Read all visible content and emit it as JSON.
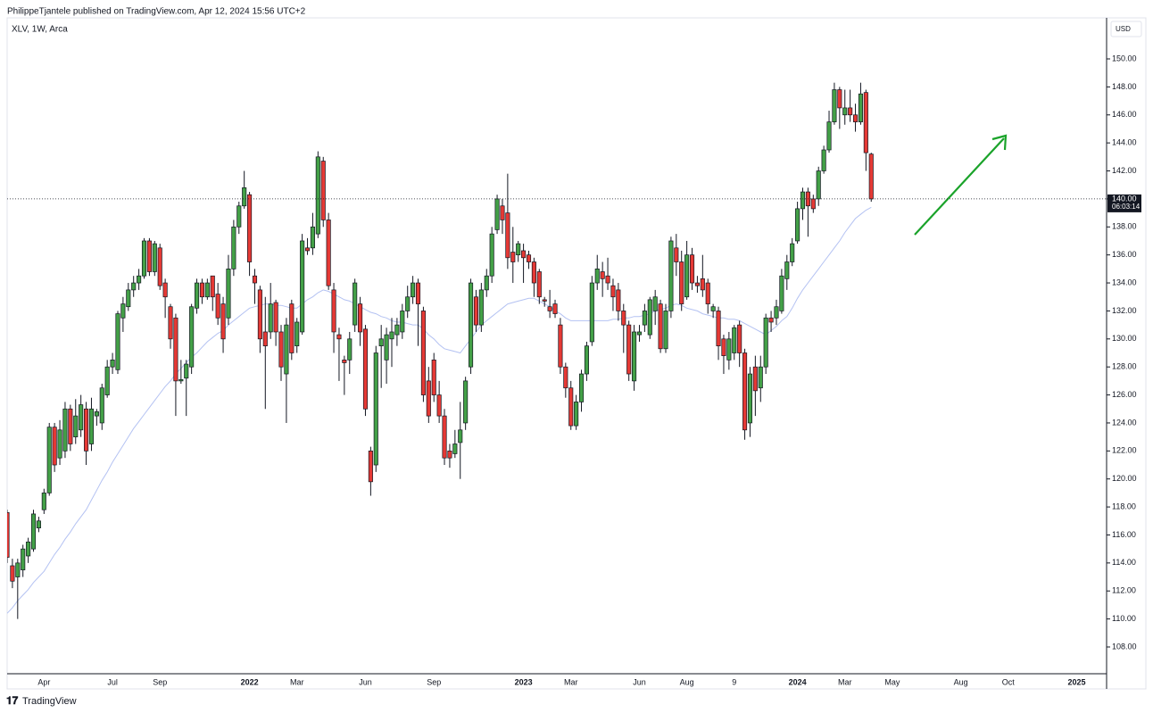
{
  "header": {
    "attribution": "PhilippeTjantele published on TradingView.com, Apr 12, 2024 15:56 UTC+2",
    "brand": "TradingView"
  },
  "chart_data": {
    "type": "candlestick",
    "title": "XLV, 1W, Arca",
    "currency": "USD",
    "up_color": "#43a047",
    "down_color": "#e53935",
    "last_price": {
      "value": 140,
      "label": "140.00"
    },
    "countdown": "06:03:14",
    "ylim": [
      107,
      152
    ],
    "yticks": [
      {
        "value": 108,
        "label": "108.00"
      },
      {
        "value": 110,
        "label": "110.00"
      },
      {
        "value": 112,
        "label": "112.00"
      },
      {
        "value": 114,
        "label": "114.00"
      },
      {
        "value": 116,
        "label": "116.00"
      },
      {
        "value": 118,
        "label": "118.00"
      },
      {
        "value": 120,
        "label": "120.00"
      },
      {
        "value": 122,
        "label": "122.00"
      },
      {
        "value": 124,
        "label": "124.00"
      },
      {
        "value": 126,
        "label": "126.00"
      },
      {
        "value": 128,
        "label": "128.00"
      },
      {
        "value": 130,
        "label": "130.00"
      },
      {
        "value": 132,
        "label": "132.00"
      },
      {
        "value": 134,
        "label": "134.00"
      },
      {
        "value": 136,
        "label": "136.00"
      },
      {
        "value": 138,
        "label": "138.00"
      },
      {
        "value": 140,
        "label": "140.00"
      },
      {
        "value": 142,
        "label": "142.00"
      },
      {
        "value": 144,
        "label": "144.00"
      },
      {
        "value": 146,
        "label": "146.00"
      },
      {
        "value": 148,
        "label": "148.00"
      },
      {
        "value": 150,
        "label": "150.00"
      }
    ],
    "categories": [
      null,
      null,
      null,
      null,
      null,
      null,
      null,
      "Apr",
      null,
      null,
      null,
      null,
      null,
      null,
      null,
      null,
      null,
      null,
      null,
      null,
      "Jul",
      null,
      null,
      null,
      null,
      null,
      null,
      null,
      null,
      "Sep",
      null,
      null,
      null,
      null,
      null,
      null,
      null,
      null,
      null,
      null,
      null,
      null,
      null,
      null,
      null,
      null,
      "2022",
      null,
      null,
      null,
      null,
      null,
      null,
      null,
      null,
      "Mar",
      null,
      null,
      null,
      null,
      null,
      null,
      null,
      null,
      null,
      null,
      null,
      null,
      "Jun",
      null,
      null,
      null,
      null,
      null,
      null,
      null,
      null,
      null,
      null,
      null,
      null,
      "Sep",
      null,
      null,
      null,
      null,
      null,
      null,
      null,
      null,
      null,
      null,
      null,
      null,
      null,
      null,
      null,
      null,
      "2023",
      null,
      null,
      null,
      null,
      null,
      null,
      null,
      null,
      "Mar",
      null,
      null,
      null,
      null,
      null,
      null,
      null,
      null,
      null,
      null,
      null,
      null,
      "Jun",
      null,
      null,
      null,
      null,
      null,
      null,
      null,
      null,
      "Aug",
      null,
      null,
      null,
      null,
      null,
      null,
      null,
      null,
      "9",
      null,
      null,
      null,
      null,
      null,
      null,
      null,
      null,
      null,
      null,
      null,
      "2024",
      null,
      null,
      null,
      null,
      null,
      null,
      null,
      null,
      "Mar",
      null,
      null,
      null,
      null,
      null,
      null,
      null,
      null,
      "May",
      null,
      null,
      null,
      null,
      null,
      null,
      null,
      null,
      null,
      null,
      null,
      null,
      "Aug",
      null,
      null,
      null,
      null,
      null,
      null,
      null,
      null,
      "Oct",
      null,
      null,
      null,
      null,
      null,
      null,
      null,
      null,
      null,
      null,
      null,
      null,
      "2025",
      null,
      null,
      null,
      null,
      null
    ],
    "open": [
      117.6,
      113.8,
      113.0,
      113.5,
      114.5,
      115.0,
      116.5,
      117.8,
      119.0,
      123.7,
      121.5,
      122.0,
      125.0,
      123.0,
      123.5,
      125.0,
      122.5,
      124.5,
      124.0,
      126.0,
      128.0,
      127.8,
      131.5,
      132.3,
      133.5,
      134.0,
      134.5,
      137.0,
      134.8,
      136.5,
      134.0,
      132.3,
      131.5,
      127.0,
      127.2,
      128.0,
      132.2,
      134.0,
      133.0,
      134.5,
      133.2,
      132.5,
      131.5,
      135.0,
      138.0,
      139.5,
      140.3,
      134.5,
      133.5,
      130.5,
      130.5,
      132.6,
      130.5,
      127.5,
      132.5,
      129.5,
      130.5,
      136.5,
      136.5,
      137.5,
      142.7,
      138.5,
      133.5,
      130.3,
      128.5,
      128.5,
      131.0,
      132.5,
      130.7,
      122.0,
      121.0,
      129.5,
      128.5,
      130.0,
      130.3,
      130.5,
      132.0,
      133.0,
      134.0,
      132.0,
      127.0,
      128.5,
      126.0,
      124.5,
      122.0,
      121.8,
      122.6,
      124.0,
      128.0,
      133.0,
      131.0,
      133.5,
      134.5,
      137.8,
      139.5,
      139.0,
      136.2,
      136.0,
      136.3,
      136.0,
      135.5,
      134.8,
      132.8,
      132.3,
      132.5,
      131.0,
      128.0,
      126.5,
      123.8,
      125.5,
      127.5,
      129.8,
      134.0,
      134.8,
      134.5,
      133.8,
      133.5,
      132.0,
      131.0,
      127.0,
      130.3,
      131.0,
      130.3,
      132.0,
      132.5,
      129.3,
      132.0,
      136.5,
      135.5,
      133.0,
      136.0,
      134.0,
      134.3,
      134.0,
      132.0,
      132.0,
      130.0,
      128.5,
      129.0,
      131.0,
      129.0,
      124.0,
      128.0,
      126.5,
      128.0,
      131.5,
      131.5,
      132.0,
      134.3,
      135.5,
      137.0,
      139.3,
      140.5,
      140.0,
      140.0,
      142.0,
      143.5,
      145.5,
      147.8,
      146.0,
      146.5,
      146.0,
      145.5,
      147.6,
      143.2,
      null,
      null,
      null,
      null,
      null,
      null,
      null,
      null,
      null,
      null,
      null,
      null,
      null,
      null,
      null,
      null,
      null,
      null,
      null,
      null,
      null,
      null,
      null,
      null,
      null,
      null,
      null,
      null,
      null,
      null,
      null,
      null,
      null,
      null,
      null,
      null,
      null,
      null,
      null,
      null,
      null,
      null,
      null,
      null
    ],
    "high": [
      117.8,
      114.3,
      114.3,
      115.3,
      115.8,
      117.8,
      117.3,
      119.3,
      124.0,
      124.0,
      124.2,
      125.5,
      125.3,
      125.7,
      126.0,
      125.5,
      125.8,
      125.0,
      126.8,
      128.5,
      129.0,
      132.0,
      133.0,
      134.0,
      134.5,
      135.0,
      137.2,
      137.2,
      137.0,
      136.8,
      134.3,
      132.5,
      131.8,
      128.5,
      128.5,
      132.5,
      134.3,
      134.3,
      134.3,
      134.5,
      134.0,
      133.0,
      136.0,
      138.5,
      139.8,
      142.0,
      140.5,
      135.0,
      133.8,
      133.0,
      134.0,
      132.8,
      131.0,
      131.5,
      132.8,
      131.5,
      137.5,
      137.2,
      139.0,
      143.4,
      143.0,
      139.0,
      134.0,
      130.8,
      128.8,
      130.5,
      134.3,
      133.0,
      131.0,
      122.3,
      129.5,
      131.0,
      130.8,
      131.5,
      131.5,
      132.5,
      133.8,
      134.5,
      134.3,
      132.3,
      128.0,
      129.0,
      127.0,
      125.0,
      122.5,
      123.5,
      125.5,
      127.3,
      134.3,
      133.5,
      134.0,
      135.0,
      138.0,
      140.3,
      140.0,
      141.8,
      138.0,
      137.0,
      136.8,
      136.3,
      135.8,
      135.0,
      133.0,
      133.5,
      132.8,
      131.5,
      128.3,
      127.0,
      126.0,
      127.8,
      129.8,
      134.5,
      136.0,
      135.5,
      135.8,
      134.3,
      134.0,
      132.5,
      131.3,
      131.0,
      131.0,
      132.5,
      133.0,
      133.5,
      132.8,
      132.5,
      137.3,
      137.5,
      136.3,
      137.0,
      136.5,
      134.5,
      136.0,
      134.3,
      132.5,
      132.3,
      130.3,
      130.5,
      131.0,
      131.3,
      129.3,
      128.0,
      128.8,
      128.8,
      131.8,
      132.0,
      132.8,
      135.0,
      136.0,
      137.2,
      139.8,
      140.8,
      140.8,
      140.3,
      142.3,
      143.8,
      146.3,
      148.3,
      148.0,
      147.8,
      147.8,
      146.8,
      148.3,
      147.8,
      143.3,
      null,
      null,
      null,
      null,
      null,
      null,
      null,
      null,
      null,
      null,
      null,
      null,
      null,
      null,
      null,
      null,
      null,
      null,
      null,
      null,
      null,
      null,
      null,
      null,
      null,
      null,
      null,
      null,
      null,
      null,
      null,
      null,
      null,
      null,
      null,
      null,
      null,
      null,
      null,
      null,
      null,
      null,
      null,
      null
    ],
    "low": [
      114.0,
      112.2,
      110.0,
      113.0,
      114.0,
      114.8,
      116.2,
      117.5,
      118.8,
      120.5,
      121.0,
      121.5,
      122.0,
      122.5,
      123.0,
      121.0,
      122.0,
      123.8,
      123.5,
      125.8,
      127.5,
      127.5,
      130.5,
      132.0,
      133.0,
      133.5,
      134.3,
      134.5,
      134.5,
      133.5,
      131.5,
      129.3,
      124.5,
      126.8,
      124.5,
      127.5,
      131.8,
      132.5,
      132.8,
      132.0,
      131.0,
      129.0,
      131.0,
      134.5,
      137.5,
      139.3,
      134.5,
      132.5,
      129.0,
      125.0,
      130.0,
      129.5,
      127.0,
      124.0,
      128.5,
      129.0,
      130.3,
      136.0,
      136.0,
      137.2,
      138.0,
      133.5,
      129.0,
      127.0,
      126.0,
      127.5,
      130.5,
      129.5,
      124.5,
      118.8,
      120.5,
      126.5,
      126.8,
      128.0,
      129.5,
      130.0,
      131.5,
      132.5,
      129.5,
      125.5,
      124.0,
      125.5,
      124.0,
      121.0,
      120.8,
      121.5,
      120.0,
      123.5,
      127.5,
      130.5,
      130.5,
      133.0,
      134.0,
      137.5,
      137.5,
      135.0,
      134.0,
      135.5,
      134.0,
      135.0,
      133.0,
      132.5,
      132.3,
      131.5,
      131.5,
      127.5,
      125.8,
      123.5,
      123.5,
      124.8,
      127.0,
      129.5,
      133.5,
      133.0,
      133.5,
      132.0,
      131.3,
      129.0,
      127.0,
      126.3,
      129.8,
      130.5,
      130.0,
      131.0,
      129.0,
      129.0,
      131.5,
      134.5,
      132.0,
      132.8,
      133.5,
      133.3,
      133.0,
      131.8,
      131.5,
      128.5,
      127.5,
      127.8,
      128.5,
      128.0,
      122.8,
      123.0,
      124.5,
      125.5,
      127.5,
      130.5,
      131.0,
      131.8,
      133.5,
      135.2,
      136.8,
      138.5,
      137.3,
      139.0,
      139.5,
      141.8,
      143.3,
      145.3,
      145.0,
      145.3,
      145.5,
      144.8,
      145.3,
      142.0,
      139.8,
      null,
      null,
      null,
      null,
      null,
      null,
      null,
      null,
      null,
      null,
      null,
      null,
      null,
      null,
      null,
      null,
      null,
      null,
      null,
      null,
      null,
      null,
      null,
      null,
      null,
      null,
      null,
      null,
      null,
      null,
      null,
      null,
      null,
      null,
      null,
      null,
      null,
      null,
      null,
      null,
      null,
      null,
      null,
      null
    ],
    "close": [
      114.4,
      112.7,
      114.0,
      115.0,
      115.5,
      117.5,
      117.0,
      119.0,
      123.7,
      121.0,
      123.5,
      125.0,
      122.5,
      124.5,
      125.3,
      122.0,
      125.0,
      124.8,
      126.5,
      128.0,
      128.5,
      131.8,
      132.5,
      133.5,
      134.0,
      134.5,
      137.0,
      134.8,
      136.8,
      133.8,
      133.0,
      130.0,
      127.0,
      127.1,
      128.2,
      132.3,
      134.0,
      133.0,
      134.0,
      133.0,
      131.5,
      130.0,
      135.0,
      138.0,
      139.5,
      140.8,
      135.5,
      134.0,
      130.0,
      129.5,
      132.5,
      130.5,
      128.0,
      131.0,
      129.0,
      131.2,
      137.0,
      136.3,
      138.0,
      143.0,
      138.5,
      133.8,
      130.5,
      130.0,
      128.3,
      130.0,
      134.0,
      130.5,
      125.0,
      119.8,
      129.0,
      130.0,
      130.3,
      130.5,
      131.0,
      132.0,
      133.0,
      134.0,
      132.5,
      126.0,
      124.5,
      126.0,
      124.5,
      121.5,
      121.5,
      122.5,
      123.5,
      127.0,
      134.0,
      131.0,
      133.5,
      134.5,
      137.5,
      140.0,
      138.5,
      135.8,
      135.5,
      136.8,
      135.8,
      135.5,
      134.0,
      133.0,
      132.7,
      132.0,
      131.8,
      128.0,
      126.5,
      123.8,
      125.5,
      127.5,
      129.5,
      134.0,
      135.0,
      134.3,
      134.0,
      133.0,
      132.0,
      131.0,
      127.5,
      130.5,
      130.5,
      132.0,
      132.8,
      133.0,
      129.3,
      132.0,
      137.0,
      135.5,
      132.5,
      136.0,
      134.0,
      133.8,
      133.5,
      132.5,
      132.3,
      129.5,
      128.8,
      130.0,
      130.8,
      129.0,
      123.5,
      127.5,
      126.3,
      128.0,
      131.5,
      131.2,
      132.3,
      134.5,
      135.5,
      136.8,
      139.3,
      140.5,
      139.5,
      139.3,
      142.0,
      143.5,
      145.5,
      147.8,
      146.5,
      146.5,
      146.0,
      145.5,
      147.5,
      143.3,
      140.0,
      null,
      null,
      null,
      null,
      null,
      null,
      null,
      null,
      null,
      null,
      null,
      null,
      null,
      null,
      null,
      null,
      null,
      null,
      null,
      null,
      null,
      null,
      null,
      null,
      null,
      null,
      null,
      null,
      null,
      null,
      null,
      null,
      null,
      null,
      null,
      null,
      null,
      null,
      null,
      null,
      null,
      null,
      null,
      null
    ],
    "ma": {
      "color": "#b4c2f2",
      "values": [
        110.4,
        110.8,
        111.3,
        111.7,
        112.1,
        112.6,
        113.0,
        113.4,
        114.0,
        114.6,
        115.1,
        115.7,
        116.2,
        116.8,
        117.3,
        117.8,
        118.5,
        119.2,
        119.9,
        120.5,
        121.2,
        121.8,
        122.4,
        123.0,
        123.6,
        124.1,
        124.6,
        125.1,
        125.6,
        126.1,
        126.6,
        127.0,
        127.5,
        127.9,
        128.3,
        128.7,
        129.0,
        129.4,
        129.8,
        130.1,
        130.4,
        130.6,
        131.0,
        131.3,
        131.6,
        131.9,
        132.2,
        132.3,
        132.4,
        132.5,
        132.5,
        132.4,
        132.4,
        132.3,
        132.2,
        132.2,
        132.5,
        132.8,
        133.0,
        133.3,
        133.5,
        133.4,
        133.2,
        133.0,
        132.8,
        132.7,
        132.5,
        132.3,
        132.1,
        131.9,
        131.8,
        131.6,
        131.5,
        131.3,
        131.2,
        131.2,
        131.1,
        131.0,
        131.0,
        130.7,
        130.3,
        130.0,
        129.6,
        129.3,
        129.2,
        129.1,
        129.0,
        129.5,
        130.0,
        130.5,
        131.0,
        131.3,
        131.6,
        131.9,
        132.2,
        132.5,
        132.6,
        132.7,
        132.8,
        132.9,
        132.9,
        132.7,
        132.5,
        132.3,
        132.0,
        131.8,
        131.5,
        131.3,
        131.3,
        131.3,
        131.3,
        131.3,
        131.3,
        131.3,
        131.3,
        131.4,
        131.4,
        131.5,
        131.5,
        131.6,
        131.6,
        131.7,
        131.8,
        132.0,
        132.1,
        132.2,
        132.4,
        132.5,
        132.4,
        132.2,
        132.1,
        132.0,
        131.8,
        131.7,
        131.6,
        131.5,
        131.5,
        131.4,
        131.4,
        131.3,
        131.1,
        130.9,
        130.7,
        130.5,
        130.3,
        130.6,
        130.9,
        131.3,
        131.6,
        132.2,
        132.9,
        133.5,
        134.0,
        134.5,
        135.0,
        135.5,
        136.0,
        136.5,
        137.0,
        137.6,
        138.1,
        138.6,
        138.9,
        139.2,
        139.4,
        null,
        null,
        null,
        null,
        null,
        null,
        null,
        null,
        null,
        null,
        null,
        null,
        null,
        null,
        null,
        null,
        null,
        null,
        null,
        null,
        null,
        null,
        null,
        null,
        null,
        null,
        null,
        null,
        null,
        null,
        null,
        null,
        null,
        null,
        null,
        null,
        null,
        null,
        null,
        null,
        null,
        null,
        null,
        null
      ]
    }
  }
}
